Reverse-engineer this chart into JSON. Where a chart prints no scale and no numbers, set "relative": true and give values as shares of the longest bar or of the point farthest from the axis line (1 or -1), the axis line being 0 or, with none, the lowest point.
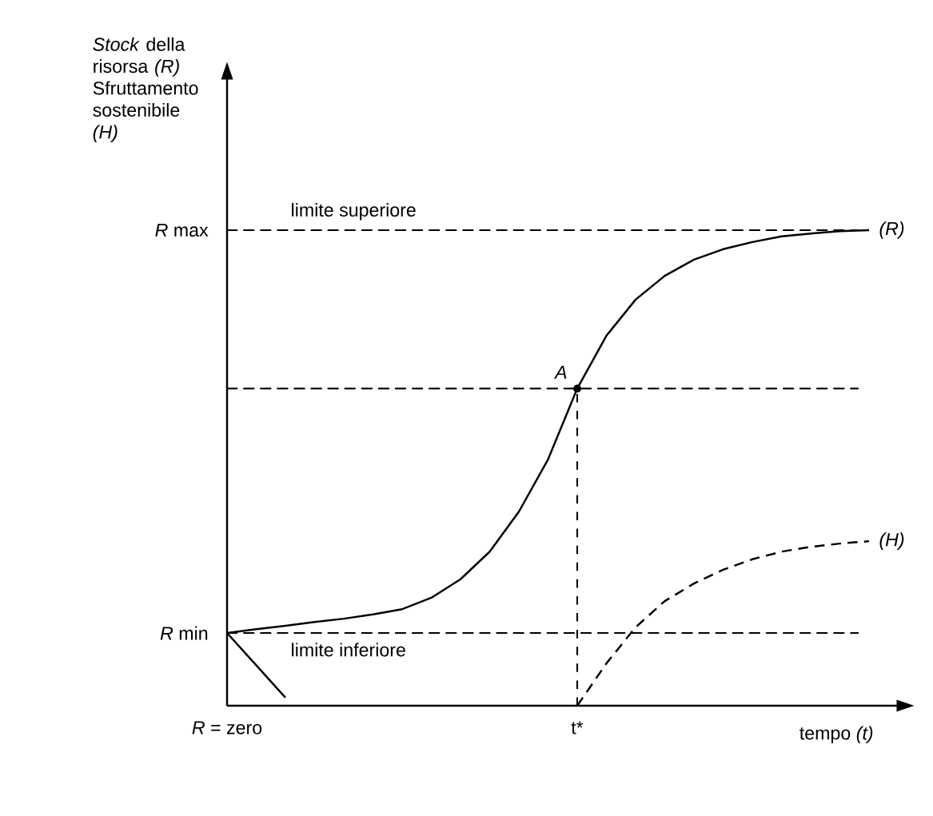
{
  "chart_data": {
    "type": "line",
    "relative": true,
    "ylabel": "*Stock* della risorsa *(R)* Sfruttamento sostenibile *(H)*",
    "xlabel": "tempo *(t)*",
    "categories": [
      null,
      null,
      null,
      null,
      null,
      null,
      null,
      null,
      null,
      null,
      null,
      null,
      null,
      null,
      null,
      null,
      null,
      null,
      null,
      null,
      null,
      null,
      null,
      null
    ],
    "series": [
      {
        "name": "(R)",
        "color": "#000000",
        "line_style": "solid",
        "values": [
          0.153,
          0.161,
          0.168,
          0.176,
          0.183,
          0.192,
          0.203,
          0.227,
          0.266,
          0.324,
          0.408,
          0.518,
          0.667,
          0.778,
          0.854,
          0.904,
          0.938,
          0.96,
          0.975,
          0.987,
          0.993,
          0.998,
          1,
          null
        ]
      },
      {
        "name": "(H)",
        "color": "#000000",
        "line_style": "dashed",
        "values": [
          null,
          null,
          null,
          null,
          null,
          null,
          null,
          null,
          null,
          null,
          null,
          null,
          0,
          0.089,
          0.165,
          0.22,
          0.257,
          0.286,
          0.308,
          0.324,
          0.334,
          0.341,
          0.346,
          null
        ]
      },
      {
        "color": "#000000",
        "line_style": "solid",
        "values": [
          0.153,
          0.085,
          0.017,
          null,
          null,
          null,
          null,
          null,
          null,
          null,
          null,
          null,
          null,
          null,
          null,
          null,
          null,
          null,
          null,
          null,
          null,
          null,
          null,
          null
        ]
      }
    ],
    "ref_lines": [
      {
        "axis": "y",
        "value": 1,
        "label": "*R* max",
        "line_style": "dashed"
      },
      {
        "axis": "y",
        "value": 0.667,
        "line_style": "dashed"
      },
      {
        "axis": "y",
        "value": 0.153,
        "label": "*R* min",
        "line_style": "dashed"
      }
    ],
    "annotations": [
      {
        "text": "A",
        "y": 0.667
      },
      "t*",
      {
        "text": "limite superiore",
        "y": 1
      },
      {
        "text": "limite inferiore",
        "y": 0.153
      },
      "*R* = zero"
    ],
    "legend": false,
    "marker": "none"
  }
}
